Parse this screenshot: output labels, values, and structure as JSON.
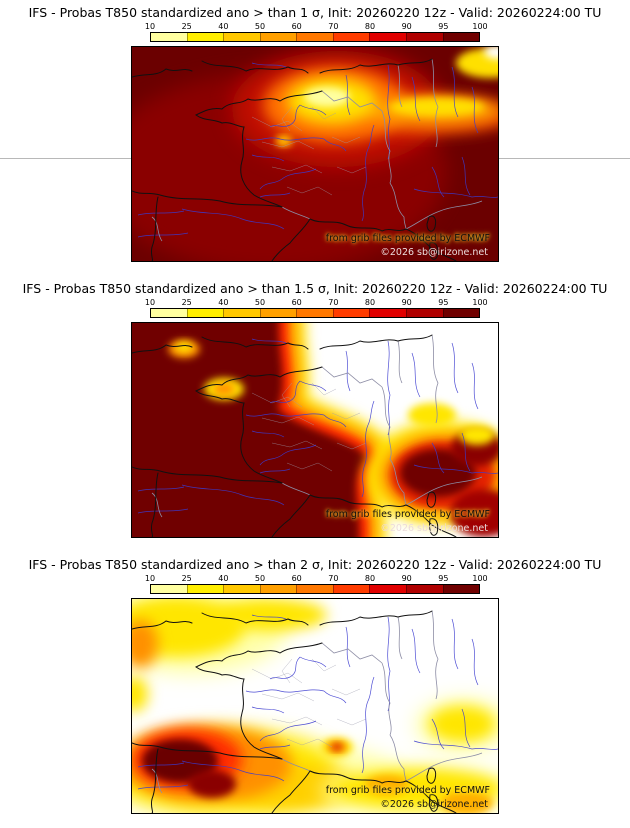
{
  "colorbar": {
    "ticks": [
      "10",
      "25",
      "40",
      "50",
      "60",
      "70",
      "80",
      "90",
      "95",
      "100"
    ],
    "colors": [
      "#ffffa0",
      "#ffee00",
      "#ffc800",
      "#ffa000",
      "#ff7800",
      "#ff3c00",
      "#e10000",
      "#b00000",
      "#700000"
    ]
  },
  "panels": [
    {
      "title": "IFS - Probas T850  standardized ano > than 1 σ, Init: 20260220 12z - Valid: 20260224:00 TU",
      "watermark_line1": "from grib files provided by ECMWF",
      "watermark_line2": "©2026 sb@irizone.net"
    },
    {
      "title": "IFS - Probas T850  standardized ano > than 1.5 σ, Init: 20260220 12z - Valid: 20260224:00 TU",
      "watermark_line1": "from grib files provided by ECMWF",
      "watermark_line2": "©2026 sb@irizone.net"
    },
    {
      "title": "IFS - Probas T850  standardized ano > than 2 σ, Init: 20260220 12z - Valid: 20260224:00 TU",
      "watermark_line1": "from grib files provided by ECMWF",
      "watermark_line2": "©2026 sb@irizone.net"
    }
  ],
  "chart_data": {
    "type": "heatmap",
    "variable": "IFS - Probas T850 standardized ano",
    "init": "20260220 12z",
    "valid": "20260224:00 TU",
    "thresholds_sigma": [
      "1",
      "1.5",
      "2"
    ],
    "colorbar_percent": [
      10,
      25,
      40,
      50,
      60,
      70,
      80,
      90,
      95,
      100
    ]
  }
}
